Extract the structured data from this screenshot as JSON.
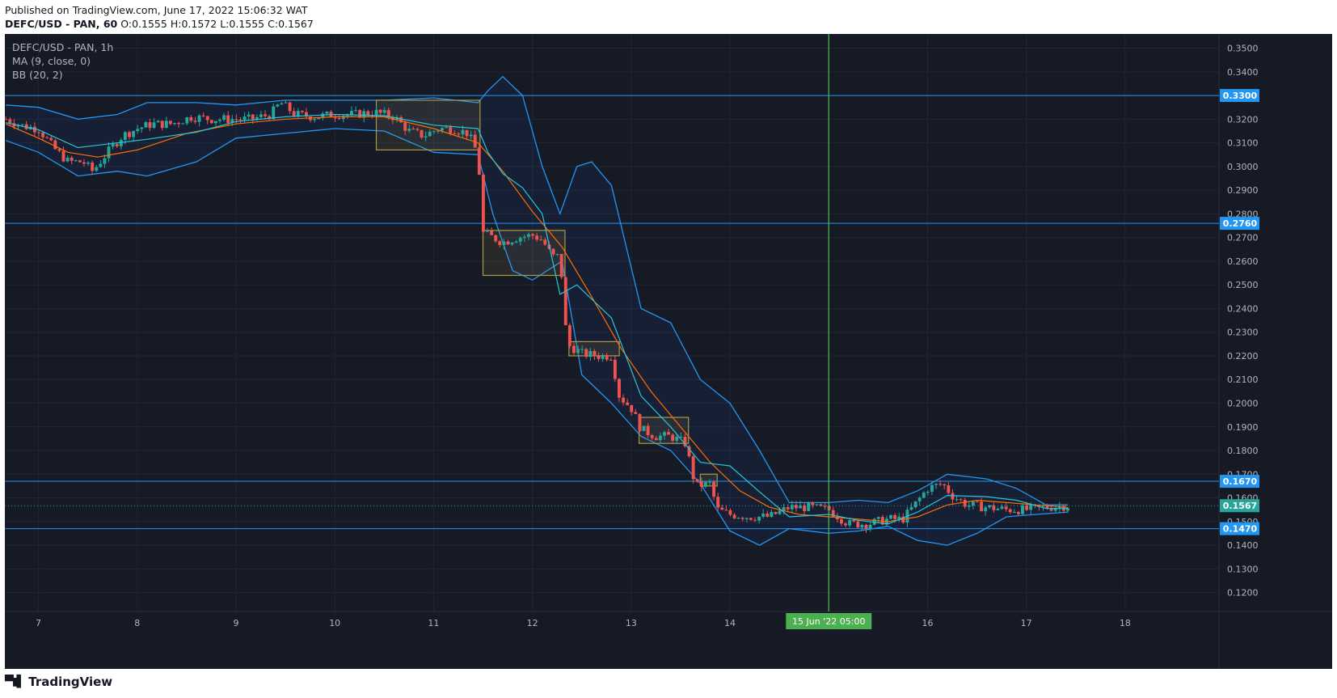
{
  "header": {
    "published": "Published on TradingView.com, June 17, 2022 15:06:32 WAT",
    "symbol_line": "DEFC/USD - PAN, 60",
    "ohlc": [
      {
        "k": "O:",
        "v": "0.1555"
      },
      {
        "k": "H:",
        "v": "0.1572"
      },
      {
        "k": "L:",
        "v": "0.1555"
      },
      {
        "k": "C:",
        "v": "0.1567"
      }
    ]
  },
  "legend": {
    "symbol": "DEFC/USD - PAN, 1h",
    "ma": "MA (9, close, 0)",
    "bb": "BB (20, 2)"
  },
  "footer": {
    "brand": "TradingView",
    "logo_icon": "tradingview-logo-icon"
  },
  "colors": {
    "background": "#161a25",
    "grid": "#222633",
    "axis_text": "#b2b5be",
    "up": "#26a69a",
    "down": "#ef5350",
    "bb": "#2962ff",
    "bb_line": "#2196f3",
    "ma": "#ff6d00",
    "basis": "#26c6da",
    "hline": "#2196f3",
    "vline": "#4caf50",
    "box": "#a99a48",
    "last_price": "#26a69a"
  },
  "y_axis": {
    "ticks": [
      "0.3500",
      "0.3400",
      "0.3300",
      "0.3200",
      "0.3100",
      "0.3000",
      "0.2900",
      "0.2800",
      "0.2700",
      "0.2600",
      "0.2500",
      "0.2400",
      "0.2300",
      "0.2200",
      "0.2100",
      "0.2000",
      "0.1900",
      "0.1800",
      "0.1700",
      "0.1600",
      "0.1500",
      "0.1400",
      "0.1300",
      "0.1200"
    ]
  },
  "x_axis": {
    "ticks": [
      "7",
      "8",
      "9",
      "10",
      "11",
      "12",
      "13",
      "14",
      "15",
      "16",
      "17",
      "18"
    ],
    "crosshair_label": "15 Jun '22   05:00"
  },
  "price_lines": [
    {
      "label": "0.3300",
      "value": 0.33
    },
    {
      "label": "0.2760",
      "value": 0.276
    },
    {
      "label": "0.1670",
      "value": 0.167
    },
    {
      "label": "0.1470",
      "value": 0.147
    }
  ],
  "last_price": {
    "label": "0.1567",
    "value": 0.1567
  },
  "chart_data": {
    "type": "candlestick",
    "interval": "1h",
    "price_range": [
      0.112,
      0.356
    ],
    "day_range": [
      6.66,
      18.95
    ],
    "close_path": [
      [
        6.67,
        0.32
      ],
      [
        6.85,
        0.317
      ],
      [
        7.0,
        0.316
      ],
      [
        7.15,
        0.308
      ],
      [
        7.3,
        0.302
      ],
      [
        7.45,
        0.302
      ],
      [
        7.55,
        0.298
      ],
      [
        7.7,
        0.306
      ],
      [
        7.85,
        0.313
      ],
      [
        8.0,
        0.316
      ],
      [
        8.15,
        0.318
      ],
      [
        8.35,
        0.318
      ],
      [
        8.55,
        0.321
      ],
      [
        8.75,
        0.32
      ],
      [
        8.95,
        0.32
      ],
      [
        9.15,
        0.32
      ],
      [
        9.35,
        0.322
      ],
      [
        9.45,
        0.327
      ],
      [
        9.6,
        0.322
      ],
      [
        9.8,
        0.321
      ],
      [
        10.0,
        0.322
      ],
      [
        10.2,
        0.322
      ],
      [
        10.4,
        0.323
      ],
      [
        10.6,
        0.321
      ],
      [
        10.75,
        0.315
      ],
      [
        10.9,
        0.313
      ],
      [
        11.05,
        0.316
      ],
      [
        11.2,
        0.316
      ],
      [
        11.35,
        0.314
      ],
      [
        11.45,
        0.305
      ],
      [
        11.5,
        0.272
      ],
      [
        11.6,
        0.27
      ],
      [
        11.7,
        0.268
      ],
      [
        11.85,
        0.27
      ],
      [
        12.0,
        0.271
      ],
      [
        12.1,
        0.269
      ],
      [
        12.2,
        0.262
      ],
      [
        12.28,
        0.262
      ],
      [
        12.35,
        0.225
      ],
      [
        12.5,
        0.221
      ],
      [
        12.65,
        0.22
      ],
      [
        12.8,
        0.22
      ],
      [
        12.88,
        0.203
      ],
      [
        13.0,
        0.198
      ],
      [
        13.1,
        0.189
      ],
      [
        13.25,
        0.186
      ],
      [
        13.4,
        0.186
      ],
      [
        13.55,
        0.183
      ],
      [
        13.65,
        0.165
      ],
      [
        13.8,
        0.166
      ],
      [
        13.87,
        0.155
      ],
      [
        14.0,
        0.153
      ],
      [
        14.2,
        0.152
      ],
      [
        14.4,
        0.152
      ],
      [
        14.6,
        0.156
      ],
      [
        14.8,
        0.156
      ],
      [
        15.0,
        0.155
      ],
      [
        15.2,
        0.149
      ],
      [
        15.4,
        0.149
      ],
      [
        15.6,
        0.151
      ],
      [
        15.75,
        0.151
      ],
      [
        15.85,
        0.156
      ],
      [
        16.0,
        0.164
      ],
      [
        16.15,
        0.166
      ],
      [
        16.25,
        0.161
      ],
      [
        16.4,
        0.157
      ],
      [
        16.6,
        0.156
      ],
      [
        16.8,
        0.155
      ],
      [
        17.0,
        0.155
      ],
      [
        17.2,
        0.156
      ],
      [
        17.42,
        0.1567
      ]
    ],
    "moving_average": [
      [
        6.67,
        0.318
      ],
      [
        7.0,
        0.312
      ],
      [
        7.3,
        0.306
      ],
      [
        7.6,
        0.304
      ],
      [
        8.0,
        0.307
      ],
      [
        8.5,
        0.314
      ],
      [
        9.0,
        0.318
      ],
      [
        9.5,
        0.32
      ],
      [
        10.0,
        0.321
      ],
      [
        10.5,
        0.321
      ],
      [
        11.0,
        0.316
      ],
      [
        11.45,
        0.31
      ],
      [
        11.7,
        0.298
      ],
      [
        12.0,
        0.281
      ],
      [
        12.3,
        0.266
      ],
      [
        12.6,
        0.245
      ],
      [
        12.9,
        0.223
      ],
      [
        13.2,
        0.205
      ],
      [
        13.5,
        0.19
      ],
      [
        13.8,
        0.175
      ],
      [
        14.1,
        0.163
      ],
      [
        14.4,
        0.156
      ],
      [
        14.7,
        0.153
      ],
      [
        15.0,
        0.152
      ],
      [
        15.3,
        0.151
      ],
      [
        15.6,
        0.15
      ],
      [
        15.9,
        0.152
      ],
      [
        16.2,
        0.157
      ],
      [
        16.5,
        0.159
      ],
      [
        16.8,
        0.158
      ],
      [
        17.1,
        0.157
      ],
      [
        17.42,
        0.156
      ]
    ],
    "bollinger_upper": [
      [
        6.67,
        0.326
      ],
      [
        7.0,
        0.325
      ],
      [
        7.4,
        0.32
      ],
      [
        7.8,
        0.322
      ],
      [
        8.1,
        0.327
      ],
      [
        8.6,
        0.327
      ],
      [
        9.0,
        0.326
      ],
      [
        9.5,
        0.328
      ],
      [
        10.0,
        0.328
      ],
      [
        10.5,
        0.328
      ],
      [
        11.0,
        0.329
      ],
      [
        11.45,
        0.327
      ],
      [
        11.55,
        0.332
      ],
      [
        11.7,
        0.338
      ],
      [
        11.9,
        0.33
      ],
      [
        12.1,
        0.3
      ],
      [
        12.28,
        0.28
      ],
      [
        12.45,
        0.3
      ],
      [
        12.6,
        0.302
      ],
      [
        12.8,
        0.292
      ],
      [
        13.1,
        0.24
      ],
      [
        13.4,
        0.234
      ],
      [
        13.7,
        0.21
      ],
      [
        14.0,
        0.2
      ],
      [
        14.3,
        0.18
      ],
      [
        14.6,
        0.158
      ],
      [
        15.0,
        0.158
      ],
      [
        15.3,
        0.159
      ],
      [
        15.6,
        0.158
      ],
      [
        15.9,
        0.163
      ],
      [
        16.2,
        0.17
      ],
      [
        16.6,
        0.168
      ],
      [
        16.9,
        0.164
      ],
      [
        17.2,
        0.157
      ],
      [
        17.42,
        0.157
      ]
    ],
    "bollinger_lower": [
      [
        6.67,
        0.311
      ],
      [
        7.0,
        0.306
      ],
      [
        7.4,
        0.296
      ],
      [
        7.8,
        0.298
      ],
      [
        8.1,
        0.296
      ],
      [
        8.6,
        0.302
      ],
      [
        9.0,
        0.312
      ],
      [
        9.5,
        0.314
      ],
      [
        10.0,
        0.316
      ],
      [
        10.5,
        0.315
      ],
      [
        11.0,
        0.306
      ],
      [
        11.45,
        0.305
      ],
      [
        11.6,
        0.28
      ],
      [
        11.8,
        0.256
      ],
      [
        12.0,
        0.252
      ],
      [
        12.3,
        0.26
      ],
      [
        12.5,
        0.212
      ],
      [
        12.8,
        0.2
      ],
      [
        13.1,
        0.186
      ],
      [
        13.4,
        0.18
      ],
      [
        13.7,
        0.166
      ],
      [
        14.0,
        0.146
      ],
      [
        14.3,
        0.14
      ],
      [
        14.6,
        0.147
      ],
      [
        15.0,
        0.145
      ],
      [
        15.3,
        0.146
      ],
      [
        15.6,
        0.148
      ],
      [
        15.9,
        0.142
      ],
      [
        16.2,
        0.14
      ],
      [
        16.5,
        0.145
      ],
      [
        16.8,
        0.152
      ],
      [
        17.1,
        0.153
      ],
      [
        17.42,
        0.154
      ]
    ],
    "boxes": [
      {
        "d0": 10.42,
        "d1": 11.47,
        "p0": 0.307,
        "p1": 0.328
      },
      {
        "d0": 11.5,
        "d1": 12.33,
        "p0": 0.254,
        "p1": 0.273
      },
      {
        "d0": 12.37,
        "d1": 12.88,
        "p0": 0.22,
        "p1": 0.226
      },
      {
        "d0": 13.08,
        "d1": 13.58,
        "p0": 0.183,
        "p1": 0.194
      },
      {
        "d0": 13.7,
        "d1": 13.87,
        "p0": 0.165,
        "p1": 0.17
      }
    ],
    "crosshair_day": 15.0
  }
}
